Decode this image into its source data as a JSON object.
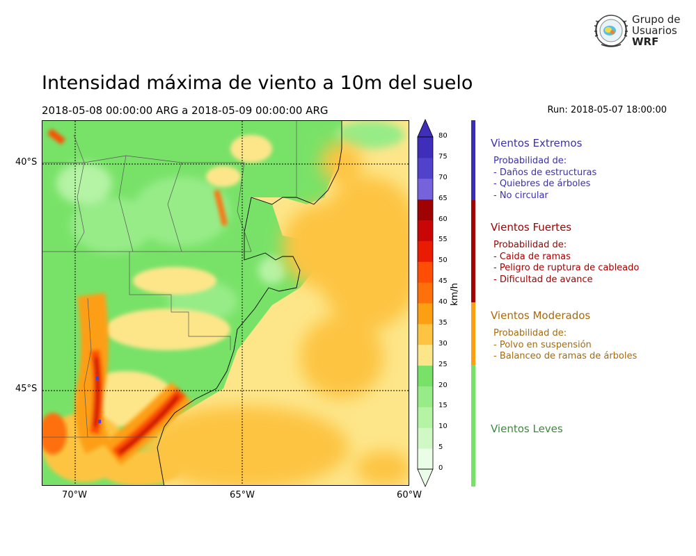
{
  "header": {
    "title": "Intensidad máxima de viento a 10m del suelo",
    "period": "2018-05-08 00:00:00 ARG  a  2018-05-09 00:00:00 ARG",
    "run": "Run: 2018-05-07 18:00:00"
  },
  "logo": {
    "line1": "Grupo de",
    "line2": "Usuarios",
    "line3": "WRF",
    "icon": "wrf-globe-emblem"
  },
  "map": {
    "region": "Patagonia / Argentina",
    "graticule_lat": [
      "40°S",
      "45°S"
    ],
    "graticule_lon": [
      "70°W",
      "65°W",
      "60°W"
    ],
    "lon_range": [
      -71,
      -60
    ],
    "lat_range": [
      -48.5,
      -39
    ]
  },
  "colorbar": {
    "units": "km/h",
    "ticks": [
      "0",
      "5",
      "10",
      "15",
      "20",
      "25",
      "30",
      "35",
      "40",
      "45",
      "50",
      "55",
      "60",
      "65",
      "70",
      "75",
      "80"
    ],
    "colors": [
      "#eafde6",
      "#d0f8c4",
      "#b5f3a5",
      "#97ec88",
      "#78e268",
      "#fde68a",
      "#fdc443",
      "#fd9f12",
      "#fe700a",
      "#fe4e05",
      "#e91b03",
      "#c90606",
      "#9e0202",
      "#7662da",
      "#5142cc",
      "#3e2eb9"
    ]
  },
  "categories": [
    {
      "title": "Vientos Extremos",
      "color": "#3b2fb1",
      "lines": [
        "Probabilidad de:",
        "- Daños de estructuras",
        "- Quiebres de árboles",
        "- No circular"
      ]
    },
    {
      "title": "Vientos Fuertes",
      "color": "#a30000",
      "lines": [
        "Probabilidad de:",
        "- Caida de ramas",
        "- Peligro de ruptura de cableado",
        "- Dificultad de avance"
      ]
    },
    {
      "title": "Vientos Moderados",
      "color": "#a86a0a",
      "lines": [
        "Probabilidad de:",
        "- Polvo en suspensión",
        "- Balanceo de ramas de árboles"
      ]
    },
    {
      "title": "Vientos Leves",
      "color": "#3a8a3a",
      "lines": []
    }
  ],
  "category_bar_colors": [
    "#3b2fb1",
    "#a30000",
    "#fd9f12",
    "#78e268"
  ]
}
